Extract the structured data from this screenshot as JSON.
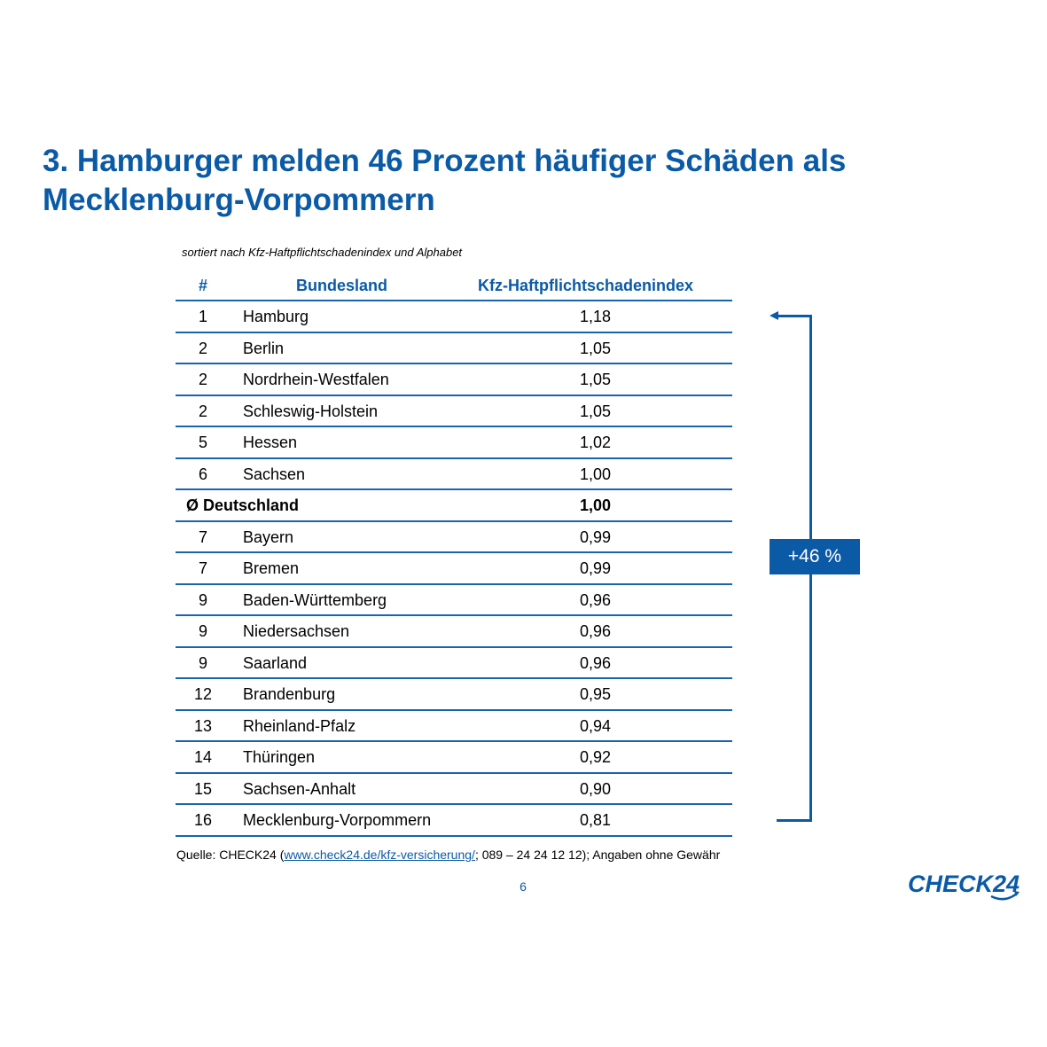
{
  "title": "3. Hamburger melden 46 Prozent häufiger Schäden als Mecklenburg-Vorpommern",
  "subtitle": "sortiert nach Kfz-Haftpflichtschadenindex und Alphabet",
  "table": {
    "headers": {
      "rank": "#",
      "land": "Bundesland",
      "value": "Kfz-Haftpflichtschadenindex"
    },
    "rows": [
      {
        "rank": "1",
        "land": "Hamburg",
        "value": "1,18"
      },
      {
        "rank": "2",
        "land": "Berlin",
        "value": "1,05"
      },
      {
        "rank": "2",
        "land": "Nordrhein-Westfalen",
        "value": "1,05"
      },
      {
        "rank": "2",
        "land": "Schleswig-Holstein",
        "value": "1,05"
      },
      {
        "rank": "5",
        "land": "Hessen",
        "value": "1,02"
      },
      {
        "rank": "6",
        "land": "Sachsen",
        "value": "1,00"
      },
      {
        "rank": "",
        "land": "Ø Deutschland",
        "value": "1,00",
        "highlight": true
      },
      {
        "rank": "7",
        "land": "Bayern",
        "value": "0,99"
      },
      {
        "rank": "7",
        "land": "Bremen",
        "value": "0,99"
      },
      {
        "rank": "9",
        "land": "Baden-Württemberg",
        "value": "0,96"
      },
      {
        "rank": "9",
        "land": "Niedersachsen",
        "value": "0,96"
      },
      {
        "rank": "9",
        "land": "Saarland",
        "value": "0,96"
      },
      {
        "rank": "12",
        "land": "Brandenburg",
        "value": "0,95"
      },
      {
        "rank": "13",
        "land": "Rheinland-Pfalz",
        "value": "0,94"
      },
      {
        "rank": "14",
        "land": "Thüringen",
        "value": "0,92"
      },
      {
        "rank": "15",
        "land": "Sachsen-Anhalt",
        "value": "0,90"
      },
      {
        "rank": "16",
        "land": "Mecklenburg-Vorpommern",
        "value": "0,81"
      }
    ]
  },
  "difference_badge": "+46 %",
  "source": {
    "prefix": "Quelle: CHECK24 (",
    "link": "www.check24.de/kfz-versicherung/",
    "suffix": "; 089 – 24 24 12 12); Angaben ohne Gewähr"
  },
  "page_number": "6",
  "logo_text": "CHECK24",
  "colors": {
    "accent": "#0b5aa6"
  }
}
